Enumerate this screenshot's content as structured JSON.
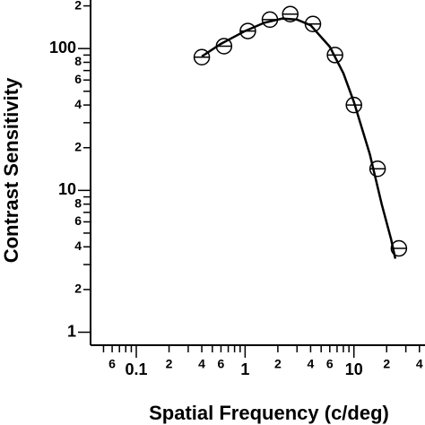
{
  "chart_data": {
    "type": "scatter",
    "xlabel": "Spatial Frequency (c/deg)",
    "ylabel": "Contrast Sensitivity",
    "xscale": "log",
    "yscale": "log",
    "xlim": [
      0.038,
      45
    ],
    "ylim": [
      0.81,
      220
    ],
    "xticks": [
      {
        "value": 0.06,
        "label": "6"
      },
      0.1,
      {
        "value": 0.2,
        "label": "2"
      },
      {
        "value": 0.4,
        "label": "4"
      },
      {
        "value": 0.6,
        "label": "6"
      },
      1,
      {
        "value": 2,
        "label": "2"
      },
      {
        "value": 4,
        "label": "4"
      },
      {
        "value": 6,
        "label": "6"
      },
      10,
      {
        "value": 20,
        "label": "2"
      },
      {
        "value": 40,
        "label": "4"
      }
    ],
    "xminor_ticks": [
      0.05,
      0.07,
      0.08,
      0.09,
      0.3,
      0.5,
      0.7,
      0.8,
      0.9,
      3,
      5,
      7,
      8,
      9,
      30
    ],
    "yticks": [
      1,
      {
        "value": 2,
        "label": "2"
      },
      {
        "value": 4,
        "label": "4"
      },
      {
        "value": 6,
        "label": "6"
      },
      {
        "value": 8,
        "label": "8"
      },
      10,
      {
        "value": 20,
        "label": "2"
      },
      {
        "value": 40,
        "label": "4"
      },
      {
        "value": 60,
        "label": "6"
      },
      {
        "value": 80,
        "label": "8"
      },
      100,
      {
        "value": 200,
        "label": "2"
      }
    ],
    "yminor_ticks": [
      3,
      5,
      7,
      9,
      30,
      50,
      70,
      90
    ],
    "series": [
      {
        "color": "#000000",
        "marker": "circle",
        "x": [
          0.4,
          0.64,
          1.06,
          1.69,
          2.6,
          4.2,
          6.7,
          10,
          16.5,
          25.9
        ],
        "values": [
          87,
          104,
          133,
          160,
          175,
          149,
          90,
          40,
          14.2,
          3.9
        ]
      },
      {
        "color": "#000000",
        "marker": "line",
        "x": [
          0.4,
          0.6,
          1,
          1.5,
          2.2,
          3,
          4,
          6,
          8,
          10,
          14,
          18,
          22,
          24
        ],
        "values": [
          88,
          108,
          133,
          152,
          163,
          160,
          146,
          103,
          67,
          42,
          18,
          8,
          4.5,
          3.3
        ]
      }
    ]
  }
}
